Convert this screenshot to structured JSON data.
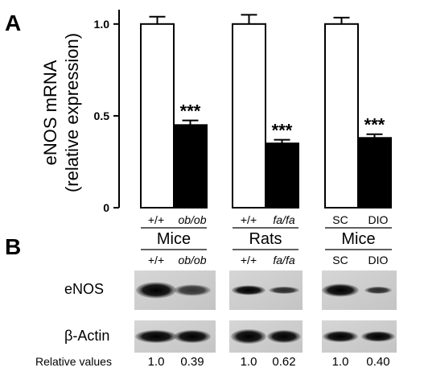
{
  "chart_data": {
    "type": "bar",
    "panel_a": {
      "letter": "A",
      "ylabel_line1": "eNOS mRNA",
      "ylabel_line2": "(relative expression)",
      "ylim": [
        0,
        1.1
      ],
      "yticks": [
        {
          "v": 0,
          "label": "0"
        },
        {
          "v": 0.5,
          "label": "0.5"
        },
        {
          "v": 1.0,
          "label": "1.0"
        }
      ],
      "groups": [
        {
          "label": "Mice",
          "bars": [
            {
              "label": "+/+",
              "italic": false,
              "value": 1.0,
              "error": 0.04,
              "fill": "white",
              "annotation": ""
            },
            {
              "label": "ob/ob",
              "italic": true,
              "value": 0.45,
              "error": 0.025,
              "fill": "black",
              "annotation": "***"
            }
          ]
        },
        {
          "label": "Rats",
          "bars": [
            {
              "label": "+/+",
              "italic": false,
              "value": 1.0,
              "error": 0.05,
              "fill": "white",
              "annotation": ""
            },
            {
              "label": "fa/fa",
              "italic": true,
              "value": 0.35,
              "error": 0.02,
              "fill": "black",
              "annotation": "***"
            }
          ]
        },
        {
          "label": "Mice",
          "bars": [
            {
              "label": "SC",
              "italic": false,
              "value": 1.0,
              "error": 0.035,
              "fill": "white",
              "annotation": ""
            },
            {
              "label": "DIO",
              "italic": false,
              "value": 0.38,
              "error": 0.02,
              "fill": "black",
              "annotation": "***"
            }
          ]
        }
      ]
    },
    "panel_b": {
      "letter": "B",
      "groups": [
        {
          "label": "Mice",
          "lanes": [
            {
              "label": "+/+",
              "italic": false
            },
            {
              "label": "ob/ob",
              "italic": true
            }
          ]
        },
        {
          "label": "Rats",
          "lanes": [
            {
              "label": "+/+",
              "italic": false
            },
            {
              "label": "fa/fa",
              "italic": true
            }
          ]
        },
        {
          "label": "Mice",
          "lanes": [
            {
              "label": "SC",
              "italic": false
            },
            {
              "label": "DIO",
              "italic": false
            }
          ]
        }
      ],
      "rows": [
        "eNOS",
        "β-Actin"
      ],
      "relative_values_label": "Relative values",
      "relative_values": [
        "1.0",
        "0.39",
        "1.0",
        "0.62",
        "1.0",
        "0.40"
      ]
    }
  }
}
